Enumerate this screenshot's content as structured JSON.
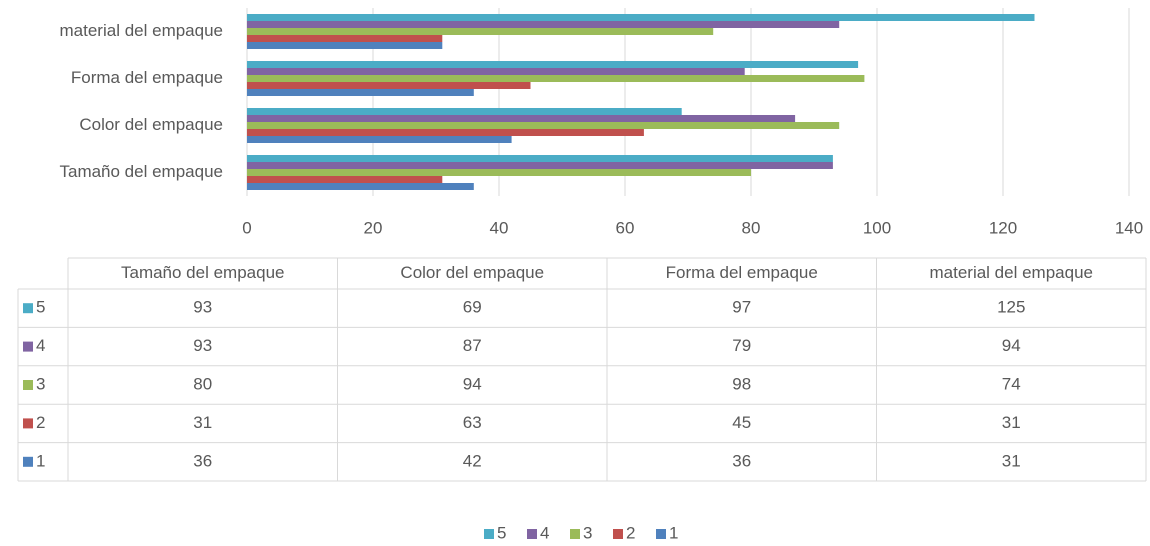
{
  "chart_data": {
    "type": "bar",
    "orientation": "horizontal",
    "categories": [
      "Tamaño del empaque",
      "Color del empaque",
      "Forma del empaque",
      "material del empaque"
    ],
    "series": [
      {
        "name": "5",
        "color": "#4bacc6",
        "values": [
          93,
          69,
          97,
          125
        ]
      },
      {
        "name": "4",
        "color": "#8064a2",
        "values": [
          93,
          87,
          79,
          94
        ]
      },
      {
        "name": "3",
        "color": "#9bbb59",
        "values": [
          80,
          94,
          98,
          74
        ]
      },
      {
        "name": "2",
        "color": "#c0504d",
        "values": [
          31,
          63,
          45,
          31
        ]
      },
      {
        "name": "1",
        "color": "#4f81bd",
        "values": [
          36,
          42,
          36,
          31
        ]
      }
    ],
    "xlim": [
      0,
      140
    ],
    "xticks": [
      0,
      20,
      40,
      60,
      80,
      100,
      120,
      140
    ],
    "grid": true,
    "legend": "bottom",
    "data_table": true
  }
}
